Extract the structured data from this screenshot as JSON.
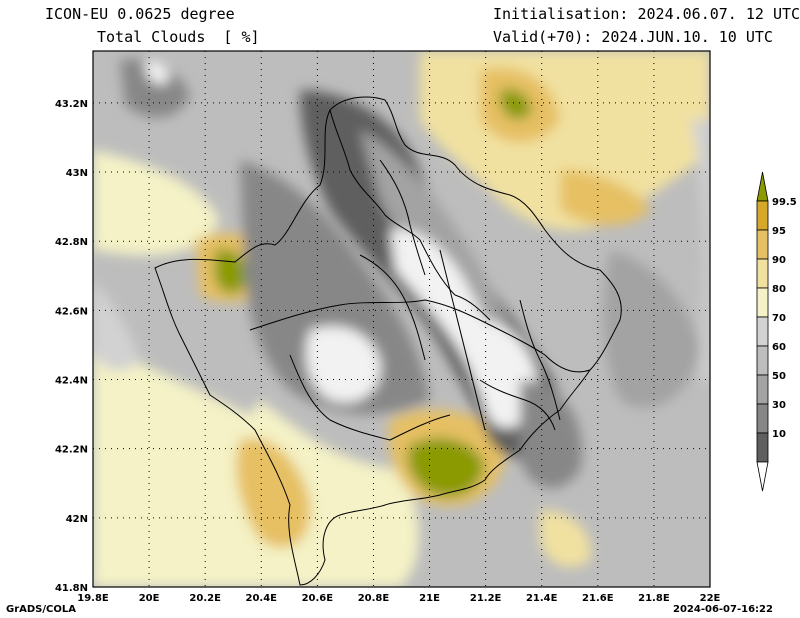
{
  "header": {
    "model": "ICON-EU 0.0625 degree",
    "field": "Total Clouds  [ %]",
    "init": "Initialisation: 2024.06.07. 12 UTC",
    "valid": "Valid(+70): 2024.JUN.10. 10 UTC"
  },
  "axes": {
    "lat_labels": [
      "43.2N",
      "43N",
      "42.8N",
      "42.6N",
      "42.4N",
      "42.2N",
      "42N",
      "41.8N"
    ],
    "lon_labels": [
      "19.8E",
      "20E",
      "20.2E",
      "20.4E",
      "20.6E",
      "20.8E",
      "21E",
      "21.2E",
      "21.4E",
      "21.6E",
      "21.8E",
      "22E"
    ],
    "lat_range": [
      41.8,
      43.35
    ],
    "lon_range": [
      19.8,
      22.0
    ]
  },
  "legend": {
    "labels": [
      "99.5",
      "95",
      "90",
      "80",
      "70",
      "60",
      "50",
      "30",
      "10"
    ],
    "colors": [
      "#8a9a00",
      "#d6a82a",
      "#e6c064",
      "#f1e1a0",
      "#f4f2c6",
      "#d2d2d2",
      "#bdbdbd",
      "#a3a3a3",
      "#878787",
      "#5f5f5f",
      "#ffffff"
    ]
  },
  "footer": {
    "left": "GrADS/COLA",
    "right": "2024-06-07-16:22"
  }
}
